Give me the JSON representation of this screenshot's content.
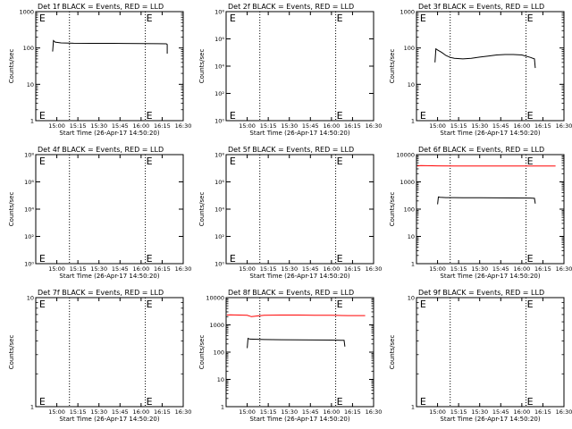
{
  "chart_data": [
    {
      "type": "line",
      "title": "Det 1f BLACK = Events, RED = LLD",
      "xlabel": "Start Time (26-Apr-17 14:50:20)",
      "ylabel": "Counts/sec",
      "ylog": true,
      "ylim": [
        1,
        1000
      ],
      "yticks": [
        1,
        10,
        100,
        1000
      ],
      "yticklabels": [
        "1",
        "10",
        "100",
        "1000"
      ],
      "xlim": [
        14.75,
        16.5
      ],
      "xticks": [
        15.0,
        15.25,
        15.5,
        15.75,
        16.0,
        16.25,
        16.5
      ],
      "xticklabels": [
        "15:00",
        "15:15",
        "15:30",
        "15:45",
        "16:00",
        "16:15",
        "16:30"
      ],
      "vlines": [
        15.15,
        16.05
      ],
      "e_markers": [
        {
          "x": 14.78,
          "text": "E"
        },
        {
          "x": 16.05,
          "text": "E"
        }
      ],
      "series": [
        {
          "color": "#000000",
          "x": [
            14.95,
            14.96,
            14.98,
            15.05,
            15.2,
            15.4,
            15.6,
            15.8,
            16.0,
            16.2,
            16.3,
            16.31,
            16.31
          ],
          "y": [
            80,
            160,
            145,
            138,
            135,
            134,
            134,
            133,
            132,
            131,
            130,
            125,
            70
          ]
        }
      ]
    },
    {
      "type": "line",
      "title": "Det 2f BLACK = Events, RED = LLD",
      "xlabel": "Start Time (26-Apr-17 14:50:20)",
      "ylabel": "Counts/sec",
      "ylog": true,
      "ylim": [
        1,
        100000000.0
      ],
      "yticks": [
        1,
        100,
        10000,
        1000000,
        100000000
      ],
      "yticklabels": [
        "10⁰",
        "10²",
        "10⁴",
        "10⁶",
        "10⁸"
      ],
      "xlim": [
        14.75,
        16.5
      ],
      "xticks": [
        15.0,
        15.25,
        15.5,
        15.75,
        16.0,
        16.25,
        16.5
      ],
      "xticklabels": [
        "15:00",
        "15:15",
        "15:30",
        "15:45",
        "16:00",
        "16:15",
        "16:30"
      ],
      "vlines": [
        15.15,
        16.05
      ],
      "e_markers": [
        {
          "x": 14.78,
          "text": "E"
        },
        {
          "x": 16.05,
          "text": "E"
        }
      ],
      "series": []
    },
    {
      "type": "line",
      "title": "Det 3f BLACK = Events, RED = LLD",
      "xlabel": "Start Time (26-Apr-17 14:50:20)",
      "ylabel": "Counts/sec",
      "ylog": true,
      "ylim": [
        1,
        1000
      ],
      "yticks": [
        1,
        10,
        100,
        1000
      ],
      "yticklabels": [
        "1",
        "10",
        "100",
        "1000"
      ],
      "xlim": [
        14.75,
        16.5
      ],
      "xticks": [
        15.0,
        15.25,
        15.5,
        15.75,
        16.0,
        16.25,
        16.5
      ],
      "xticklabels": [
        "15:00",
        "15:15",
        "15:30",
        "15:45",
        "16:00",
        "16:15",
        "16:30"
      ],
      "vlines": [
        15.15,
        16.05
      ],
      "e_markers": [
        {
          "x": 14.78,
          "text": "E"
        },
        {
          "x": 16.05,
          "text": "E"
        }
      ],
      "series": [
        {
          "color": "#000000",
          "x": [
            14.97,
            14.98,
            15.0,
            15.05,
            15.1,
            15.15,
            15.2,
            15.3,
            15.4,
            15.5,
            15.6,
            15.7,
            15.8,
            15.9,
            16.0,
            16.1,
            16.15,
            16.16
          ],
          "y": [
            40,
            95,
            88,
            75,
            62,
            55,
            52,
            50,
            52,
            56,
            60,
            64,
            66,
            66,
            64,
            55,
            50,
            28
          ]
        }
      ]
    },
    {
      "type": "line",
      "title": "Det 4f BLACK = Events, RED = LLD",
      "xlabel": "Start Time (26-Apr-17 14:50:20)",
      "ylabel": "Counts/sec",
      "ylog": true,
      "ylim": [
        1,
        100000000.0
      ],
      "yticks": [
        1,
        100,
        10000,
        1000000,
        100000000
      ],
      "yticklabels": [
        "10⁰",
        "10²",
        "10⁴",
        "10⁶",
        "10⁸"
      ],
      "xlim": [
        14.75,
        16.5
      ],
      "xticks": [
        15.0,
        15.25,
        15.5,
        15.75,
        16.0,
        16.25,
        16.5
      ],
      "xticklabels": [
        "15:00",
        "15:15",
        "15:30",
        "15:45",
        "16:00",
        "16:15",
        "16:30"
      ],
      "vlines": [
        15.15,
        16.05
      ],
      "e_markers": [
        {
          "x": 14.78,
          "text": "E"
        },
        {
          "x": 16.05,
          "text": "E"
        }
      ],
      "series": []
    },
    {
      "type": "line",
      "title": "Det 5f BLACK = Events, RED = LLD",
      "xlabel": "Start Time (26-Apr-17 14:50:20)",
      "ylabel": "Counts/sec",
      "ylog": true,
      "ylim": [
        1,
        100000000.0
      ],
      "yticks": [
        1,
        100,
        10000,
        1000000,
        100000000
      ],
      "yticklabels": [
        "10⁰",
        "10²",
        "10⁴",
        "10⁶",
        "10⁸"
      ],
      "xlim": [
        14.75,
        16.5
      ],
      "xticks": [
        15.0,
        15.25,
        15.5,
        15.75,
        16.0,
        16.25,
        16.5
      ],
      "xticklabels": [
        "15:00",
        "15:15",
        "15:30",
        "15:45",
        "16:00",
        "16:15",
        "16:30"
      ],
      "vlines": [
        15.15,
        16.05
      ],
      "e_markers": [
        {
          "x": 14.78,
          "text": "E"
        },
        {
          "x": 16.05,
          "text": "E"
        }
      ],
      "series": []
    },
    {
      "type": "line",
      "title": "Det 6f BLACK = Events, RED = LLD",
      "xlabel": "Start Time (26-Apr-17 14:50:20)",
      "ylabel": "Counts/sec",
      "ylog": true,
      "ylim": [
        1,
        10000
      ],
      "yticks": [
        1,
        10,
        100,
        1000,
        10000
      ],
      "yticklabels": [
        "1",
        "10",
        "100",
        "1000",
        "10000"
      ],
      "xlim": [
        14.75,
        16.5
      ],
      "xticks": [
        15.0,
        15.25,
        15.5,
        15.75,
        16.0,
        16.25,
        16.5
      ],
      "xticklabels": [
        "15:00",
        "15:15",
        "15:30",
        "15:45",
        "16:00",
        "16:15",
        "16:30"
      ],
      "vlines": [
        15.15,
        16.05
      ],
      "e_markers": [
        {
          "x": 16.05,
          "text": "E"
        }
      ],
      "series": [
        {
          "color": "#ff0000",
          "x": [
            14.76,
            14.8,
            15.0,
            15.2,
            15.4,
            15.6,
            15.8,
            16.0,
            16.2,
            16.4
          ],
          "y": [
            3800,
            3950,
            3850,
            3800,
            3800,
            3800,
            3800,
            3800,
            3800,
            3800
          ]
        },
        {
          "color": "#000000",
          "x": [
            15.0,
            15.01,
            15.03,
            15.1,
            15.3,
            15.5,
            15.7,
            15.9,
            16.1,
            16.15,
            16.16
          ],
          "y": [
            150,
            280,
            270,
            265,
            262,
            260,
            258,
            256,
            255,
            250,
            160
          ]
        }
      ]
    },
    {
      "type": "line",
      "title": "Det 7f BLACK = Events, RED = LLD",
      "xlabel": "Start Time (26-Apr-17 14:50:20)",
      "ylabel": "Counts/sec",
      "ylog": true,
      "ylim": [
        1,
        10
      ],
      "yticks": [
        1,
        10
      ],
      "yticklabels": [
        "1",
        "10"
      ],
      "xlim": [
        14.75,
        16.5
      ],
      "xticks": [
        15.0,
        15.25,
        15.5,
        15.75,
        16.0,
        16.25,
        16.5
      ],
      "xticklabels": [
        "15:00",
        "15:15",
        "15:30",
        "15:45",
        "16:00",
        "16:15",
        "16:30"
      ],
      "vlines": [
        15.15,
        16.05
      ],
      "e_markers": [
        {
          "x": 14.78,
          "text": "E"
        },
        {
          "x": 16.05,
          "text": "E"
        }
      ],
      "series": []
    },
    {
      "type": "line",
      "title": "Det 8f BLACK = Events, RED = LLD",
      "xlabel": "Start Time (26-Apr-17 14:50:20)",
      "ylabel": "Counts/sec",
      "ylog": true,
      "ylim": [
        1,
        10000
      ],
      "yticks": [
        1,
        10,
        100,
        1000,
        10000
      ],
      "yticklabels": [
        "1",
        "10",
        "100",
        "1000",
        "10000"
      ],
      "xlim": [
        14.75,
        16.5
      ],
      "xticks": [
        15.0,
        15.25,
        15.5,
        15.75,
        16.0,
        16.25,
        16.5
      ],
      "xticklabels": [
        "15:00",
        "15:15",
        "15:30",
        "15:45",
        "16:00",
        "16:15",
        "16:30"
      ],
      "vlines": [
        15.15,
        16.05
      ],
      "e_markers": [
        {
          "x": 16.05,
          "text": "E"
        }
      ],
      "series": [
        {
          "color": "#ff0000",
          "x": [
            14.76,
            14.8,
            14.9,
            15.0,
            15.05,
            15.2,
            15.4,
            15.6,
            15.8,
            16.0,
            16.2,
            16.4
          ],
          "y": [
            2300,
            2350,
            2300,
            2250,
            2000,
            2250,
            2300,
            2300,
            2250,
            2250,
            2200,
            2200
          ]
        },
        {
          "color": "#000000",
          "x": [
            15.0,
            15.01,
            15.03,
            15.2,
            15.4,
            15.6,
            15.8,
            16.0,
            16.15,
            16.16
          ],
          "y": [
            140,
            320,
            300,
            290,
            285,
            282,
            280,
            278,
            270,
            160
          ]
        }
      ]
    },
    {
      "type": "line",
      "title": "Det 9f BLACK = Events, RED = LLD",
      "xlabel": "Start Time (26-Apr-17 14:50:20)",
      "ylabel": "Counts/sec",
      "ylog": true,
      "ylim": [
        1,
        10
      ],
      "yticks": [
        1,
        10
      ],
      "yticklabels": [
        "1",
        "10"
      ],
      "xlim": [
        14.75,
        16.5
      ],
      "xticks": [
        15.0,
        15.25,
        15.5,
        15.75,
        16.0,
        16.25,
        16.5
      ],
      "xticklabels": [
        "15:00",
        "15:15",
        "15:30",
        "15:45",
        "16:00",
        "16:15",
        "16:30"
      ],
      "vlines": [
        15.15,
        16.05
      ],
      "e_markers": [
        {
          "x": 14.78,
          "text": "E"
        },
        {
          "x": 16.05,
          "text": "E"
        }
      ],
      "series": []
    }
  ]
}
